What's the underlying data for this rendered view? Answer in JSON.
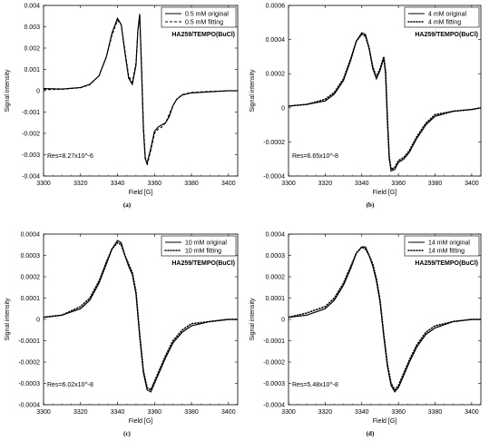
{
  "chart_data": [
    {
      "type": "line",
      "panel_label": "(a)",
      "subtitle": "HA259/TEMPO(BuCl)",
      "annotation": "Res=8.27x10^-6",
      "xlabel": "Field [G]",
      "ylabel": "Signal intensity",
      "xlim": [
        3300,
        3405
      ],
      "ylim": [
        -0.004,
        0.004
      ],
      "x_ticks": [
        3300,
        3320,
        3340,
        3360,
        3380,
        3400
      ],
      "y_ticks": [
        -0.004,
        -0.003,
        -0.002,
        -0.001,
        0,
        0.001,
        0.002,
        0.003,
        0.004
      ],
      "y_tick_labels": [
        "-0.004",
        "-0.003",
        "-0.002",
        "-0.001",
        "0",
        "0.001",
        "0.002",
        "0.003",
        "0.004"
      ],
      "legend_position": "top-right",
      "grid": false,
      "series": [
        {
          "name": "0.5 mM original",
          "style": "solid",
          "x": [
            3300,
            3310,
            3320,
            3325,
            3330,
            3334,
            3337,
            3340,
            3342,
            3344,
            3346,
            3348,
            3350,
            3351,
            3352,
            3353,
            3354,
            3355,
            3356,
            3358,
            3360,
            3362,
            3364,
            3366,
            3368,
            3370,
            3372,
            3375,
            3380,
            3390,
            3400,
            3405
          ],
          "y": [
            0.0001,
            8e-05,
            0.00015,
            0.0003,
            0.0007,
            0.0016,
            0.0027,
            0.0034,
            0.0031,
            0.0018,
            0.0006,
            0.0003,
            0.0012,
            0.0028,
            0.0036,
            0.001,
            -0.0018,
            -0.0032,
            -0.0034,
            -0.0027,
            -0.0019,
            -0.0017,
            -0.0016,
            -0.0015,
            -0.0012,
            -0.0007,
            -0.0004,
            -0.0002,
            -0.0001,
            -5e-05,
            0,
            0
          ]
        },
        {
          "name": "0.5 mM fitting",
          "style": "dashed",
          "x": [
            3300,
            3310,
            3320,
            3325,
            3330,
            3334,
            3337,
            3340,
            3342,
            3344,
            3346,
            3348,
            3350,
            3351,
            3352,
            3353,
            3354,
            3355,
            3356,
            3358,
            3360,
            3362,
            3364,
            3366,
            3368,
            3370,
            3372,
            3375,
            3380,
            3390,
            3400,
            3405
          ],
          "y": [
            5e-05,
            7e-05,
            0.00014,
            0.00028,
            0.0007,
            0.0016,
            0.0026,
            0.0033,
            0.0031,
            0.0019,
            0.0007,
            0.0004,
            0.0013,
            0.0028,
            0.0035,
            0.0012,
            -0.0016,
            -0.0031,
            -0.0035,
            -0.0028,
            -0.002,
            -0.0018,
            -0.0017,
            -0.0015,
            -0.0011,
            -0.0007,
            -0.0004,
            -0.00018,
            -8e-05,
            -3e-05,
            0,
            0
          ]
        }
      ]
    },
    {
      "type": "line",
      "panel_label": "(b)",
      "subtitle": "HA259/TEMPO(BuCl)",
      "annotation": "Res=6.65x10^-8",
      "xlabel": "Field [G]",
      "ylabel": "Signal intensity",
      "xlim": [
        3300,
        3405
      ],
      "ylim": [
        -0.0004,
        0.0006
      ],
      "x_ticks": [
        3300,
        3320,
        3340,
        3360,
        3380,
        3400
      ],
      "y_ticks": [
        -0.0004,
        -0.0002,
        0,
        0.0002,
        0.0004,
        0.0006
      ],
      "y_tick_labels": [
        "-0.0004",
        "-0.0002",
        "0",
        "0.0002",
        "0.0004",
        "0.0006"
      ],
      "legend_position": "top-right",
      "grid": false,
      "series": [
        {
          "name": "4 mM original",
          "style": "solid",
          "x": [
            3300,
            3310,
            3320,
            3325,
            3330,
            3334,
            3337,
            3340,
            3342,
            3344,
            3346,
            3348,
            3350,
            3352,
            3353,
            3354,
            3355,
            3356,
            3358,
            3360,
            3363,
            3366,
            3370,
            3375,
            3380,
            3390,
            3400,
            3405
          ],
          "y": [
            1e-05,
            2e-05,
            4e-05,
            8e-05,
            0.00016,
            0.00028,
            0.00039,
            0.00044,
            0.00043,
            0.00035,
            0.00023,
            0.00017,
            0.00022,
            0.00029,
            0.0002,
            -8e-05,
            -0.0003,
            -0.00037,
            -0.00036,
            -0.00032,
            -0.0003,
            -0.00026,
            -0.00018,
            -0.0001,
            -5e-05,
            -2e-05,
            -1e-05,
            0
          ]
        },
        {
          "name": "4 mM fitting",
          "style": "dotted",
          "x": [
            3300,
            3310,
            3320,
            3325,
            3330,
            3334,
            3337,
            3340,
            3342,
            3344,
            3346,
            3348,
            3350,
            3352,
            3353,
            3354,
            3355,
            3356,
            3358,
            3360,
            3363,
            3366,
            3370,
            3375,
            3380,
            3390,
            3400,
            3405
          ],
          "y": [
            1e-05,
            2e-05,
            5e-05,
            9e-05,
            0.00017,
            0.00029,
            0.00039,
            0.00043,
            0.00042,
            0.00035,
            0.00024,
            0.00018,
            0.00023,
            0.0003,
            0.00021,
            -6e-05,
            -0.00029,
            -0.00036,
            -0.00035,
            -0.00031,
            -0.00029,
            -0.00025,
            -0.00017,
            -9e-05,
            -4e-05,
            -2e-05,
            -1e-05,
            0
          ]
        }
      ]
    },
    {
      "type": "line",
      "panel_label": "(c)",
      "subtitle": "HA259/TEMPO(BuCl)",
      "annotation": "Res=6.02x10^-8",
      "xlabel": "Field [G]",
      "ylabel": "Signal intensity",
      "xlim": [
        3300,
        3405
      ],
      "ylim": [
        -0.0004,
        0.0004
      ],
      "x_ticks": [
        3300,
        3320,
        3340,
        3360,
        3380,
        3400
      ],
      "y_ticks": [
        -0.0004,
        -0.0003,
        -0.0002,
        -0.0001,
        0,
        0.0001,
        0.0002,
        0.0003,
        0.0004
      ],
      "y_tick_labels": [
        "-0.0004",
        "-0.0003",
        "-0.0002",
        "-0.0001",
        "0",
        "0.0001",
        "0.0002",
        "0.0003",
        "0.0004"
      ],
      "legend_position": "top-right",
      "grid": false,
      "series": [
        {
          "name": "10 mM original",
          "style": "solid",
          "x": [
            3300,
            3310,
            3320,
            3325,
            3330,
            3334,
            3337,
            3340,
            3342,
            3344,
            3346,
            3348,
            3350,
            3352,
            3354,
            3356,
            3358,
            3360,
            3363,
            3366,
            3370,
            3375,
            3380,
            3390,
            3400,
            3405
          ],
          "y": [
            1e-05,
            2e-05,
            5e-05,
            9e-05,
            0.00017,
            0.00026,
            0.00033,
            0.00037,
            0.00036,
            0.0003,
            0.00025,
            0.00021,
            0.00012,
            -8e-05,
            -0.00025,
            -0.00033,
            -0.00034,
            -0.0003,
            -0.00024,
            -0.00018,
            -0.00011,
            -6e-05,
            -3e-05,
            -1e-05,
            0,
            0
          ]
        },
        {
          "name": "10 mM fitting",
          "style": "dotted",
          "x": [
            3300,
            3310,
            3320,
            3325,
            3330,
            3334,
            3337,
            3340,
            3342,
            3344,
            3346,
            3348,
            3350,
            3352,
            3354,
            3356,
            3358,
            3360,
            3363,
            3366,
            3370,
            3375,
            3380,
            3390,
            3400,
            3405
          ],
          "y": [
            1e-05,
            2e-05,
            6e-05,
            0.0001,
            0.00018,
            0.00027,
            0.00033,
            0.00036,
            0.00035,
            0.0003,
            0.00026,
            0.00022,
            0.00013,
            -7e-05,
            -0.00024,
            -0.00032,
            -0.00033,
            -0.00029,
            -0.00023,
            -0.00017,
            -0.0001,
            -5e-05,
            -2e-05,
            -1e-05,
            0,
            0
          ]
        }
      ]
    },
    {
      "type": "line",
      "panel_label": "(d)",
      "subtitle": "HA259/TEMPO(BuCl)",
      "annotation": "Res=5.48x10^-8",
      "xlabel": "Field [G]",
      "ylabel": "Signal intensity",
      "xlim": [
        3300,
        3405
      ],
      "ylim": [
        -0.0004,
        0.0004
      ],
      "x_ticks": [
        3300,
        3320,
        3340,
        3360,
        3380,
        3400
      ],
      "y_ticks": [
        -0.0004,
        -0.0003,
        -0.0002,
        -0.0001,
        0,
        0.0001,
        0.0002,
        0.0003,
        0.0004
      ],
      "y_tick_labels": [
        "-0.0004",
        "-0.0003",
        "-0.0002",
        "-0.0001",
        "0",
        "0.0001",
        "0.0002",
        "0.0003",
        "0.0004"
      ],
      "legend_position": "top-right",
      "grid": false,
      "series": [
        {
          "name": "14 mM original",
          "style": "solid",
          "x": [
            3300,
            3310,
            3320,
            3325,
            3330,
            3334,
            3337,
            3340,
            3342,
            3344,
            3346,
            3348,
            3350,
            3352,
            3354,
            3356,
            3358,
            3360,
            3363,
            3366,
            3370,
            3375,
            3380,
            3390,
            3400,
            3405
          ],
          "y": [
            1e-05,
            2e-05,
            5e-05,
            9e-05,
            0.00016,
            0.00024,
            0.00031,
            0.00034,
            0.00034,
            0.0003,
            0.00025,
            0.00018,
            8e-05,
            -8e-05,
            -0.00022,
            -0.00031,
            -0.00034,
            -0.00032,
            -0.00026,
            -0.0002,
            -0.00013,
            -7e-05,
            -4e-05,
            -1e-05,
            0,
            0
          ]
        },
        {
          "name": "14 mM fitting",
          "style": "dotted",
          "x": [
            3300,
            3310,
            3320,
            3325,
            3330,
            3334,
            3337,
            3340,
            3342,
            3344,
            3346,
            3348,
            3350,
            3352,
            3354,
            3356,
            3358,
            3360,
            3363,
            3366,
            3370,
            3375,
            3380,
            3390,
            3400,
            3405
          ],
          "y": [
            1e-05,
            3e-05,
            6e-05,
            0.0001,
            0.00017,
            0.00025,
            0.00031,
            0.00034,
            0.00033,
            0.0003,
            0.00026,
            0.00019,
            9e-05,
            -7e-05,
            -0.00021,
            -0.0003,
            -0.00033,
            -0.00031,
            -0.00025,
            -0.00019,
            -0.00012,
            -6e-05,
            -3e-05,
            -1e-05,
            0,
            0
          ]
        }
      ]
    }
  ]
}
